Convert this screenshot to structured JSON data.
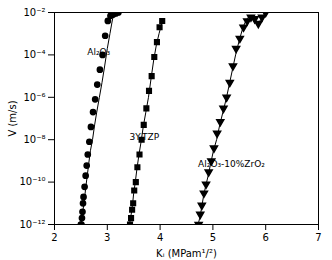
{
  "chart_data": {
    "type": "line",
    "xlabel": "Kᵢ (MPam¹/²)",
    "ylabel": "V (m/s)",
    "log": "y",
    "grid": false,
    "xlim": [
      2,
      7
    ],
    "ylim": [
      1e-12,
      0.01
    ],
    "xticks": [
      2,
      3,
      4,
      5,
      6,
      7
    ],
    "yticks": [
      {
        "value": 1e-12,
        "label": "10⁻¹²"
      },
      {
        "value": 1e-10,
        "label": "10⁻¹⁰"
      },
      {
        "value": 1e-08,
        "label": "10⁻⁸"
      },
      {
        "value": 1e-06,
        "label": "10⁻⁶"
      },
      {
        "value": 0.0001,
        "label": "10⁻⁴"
      },
      {
        "value": 0.01,
        "label": "10⁻²"
      }
    ],
    "series": [
      {
        "type": "line",
        "color": "black",
        "x": [
          2.5,
          2.52,
          2.54,
          2.56,
          2.58,
          2.6,
          2.62,
          2.65,
          2.68,
          2.72,
          2.76,
          2.8,
          2.85,
          2.9,
          2.95,
          3.0,
          3.05,
          3.1,
          3.15,
          3.2,
          3.25
        ],
        "values": [
          1e-12,
          2e-12,
          5e-12,
          1e-11,
          3e-11,
          8e-11,
          2e-10,
          8e-10,
          3e-09,
          1e-08,
          5e-08,
          2e-07,
          1e-06,
          5e-06,
          3e-05,
          0.0002,
          0.001,
          0.005,
          0.008,
          0.009,
          0.01
        ]
      },
      {
        "type": "scatter",
        "color": "black",
        "marker": "circle",
        "x": [
          2.5,
          2.51,
          2.52,
          2.53,
          2.54,
          2.55,
          2.57,
          2.59,
          2.61,
          2.63,
          2.66,
          2.69,
          2.73,
          2.77,
          2.81,
          2.86,
          2.91,
          2.96,
          3.01,
          3.06,
          3.11,
          3.16,
          3.21
        ],
        "values": [
          1e-12,
          1e-12,
          2e-12,
          4e-12,
          1e-11,
          2e-11,
          6e-11,
          2e-10,
          6e-10,
          2e-09,
          8e-09,
          4e-08,
          2e-07,
          8e-07,
          4e-06,
          2e-05,
          0.0001,
          0.0008,
          0.004,
          0.007,
          0.008,
          0.009,
          0.01
        ]
      },
      {
        "type": "line",
        "color": "black",
        "x": [
          3.42,
          3.44,
          3.46,
          3.48,
          3.5,
          3.53,
          3.56,
          3.6,
          3.64,
          3.68,
          3.73,
          3.78,
          3.83,
          3.88,
          3.93,
          3.98,
          4.03
        ],
        "values": [
          1e-12,
          2e-12,
          4e-12,
          1e-11,
          3e-11,
          1e-10,
          4e-10,
          2e-09,
          8e-09,
          4e-08,
          2e-07,
          1e-06,
          8e-06,
          6e-05,
          0.0003,
          0.001,
          0.003
        ]
      },
      {
        "type": "scatter",
        "color": "black",
        "marker": "square",
        "x": [
          3.43,
          3.45,
          3.47,
          3.49,
          3.51,
          3.54,
          3.57,
          3.61,
          3.65,
          3.69,
          3.74,
          3.79,
          3.84,
          3.89,
          3.94,
          3.99,
          4.04
        ],
        "values": [
          1e-12,
          2e-12,
          5e-12,
          1e-11,
          4e-11,
          1e-10,
          5e-10,
          2e-09,
          1e-08,
          5e-08,
          3e-07,
          2e-06,
          1e-05,
          8e-05,
          0.0004,
          0.002,
          0.004
        ]
      },
      {
        "type": "line",
        "color": "black",
        "x": [
          4.72,
          4.75,
          4.78,
          4.82,
          4.86,
          4.91,
          4.96,
          5.01,
          5.07,
          5.13,
          5.19,
          5.25,
          5.31,
          5.37,
          5.43,
          5.5,
          5.57,
          5.64,
          5.71,
          5.78,
          5.85,
          5.92,
          5.99
        ],
        "values": [
          1e-12,
          2e-12,
          5e-12,
          2e-11,
          6e-11,
          2e-10,
          8e-10,
          3e-09,
          1e-08,
          5e-08,
          2e-07,
          8e-07,
          4e-06,
          2e-05,
          0.0001,
          0.0005,
          0.002,
          0.005,
          0.007,
          0.005,
          0.003,
          0.005,
          0.01
        ]
      },
      {
        "type": "scatter",
        "color": "black",
        "marker": "triangle-down",
        "x": [
          4.73,
          4.76,
          4.79,
          4.83,
          4.87,
          4.92,
          4.97,
          5.02,
          5.08,
          5.14,
          5.2,
          5.26,
          5.32,
          5.38,
          5.44,
          5.51,
          5.58,
          5.65,
          5.72,
          5.79,
          5.86,
          5.93,
          6.0
        ],
        "values": [
          1e-12,
          3e-12,
          8e-12,
          3e-11,
          8e-11,
          3e-10,
          1e-09,
          4e-09,
          2e-08,
          7e-08,
          3e-07,
          1e-06,
          5e-06,
          3e-05,
          0.0002,
          0.0006,
          0.002,
          0.004,
          0.006,
          0.005,
          0.003,
          0.006,
          0.01
        ]
      }
    ],
    "annotations": [
      {
        "text": "Al₂O₃",
        "x": 2.62,
        "y": 0.0001,
        "color": "black"
      },
      {
        "text": "3Y-TZP",
        "x": 3.42,
        "y": 1e-08,
        "color": "black"
      },
      {
        "text": "Al₂O₃-10%ZrO₂",
        "x": 4.72,
        "y": 5e-10,
        "color": "black"
      }
    ]
  }
}
